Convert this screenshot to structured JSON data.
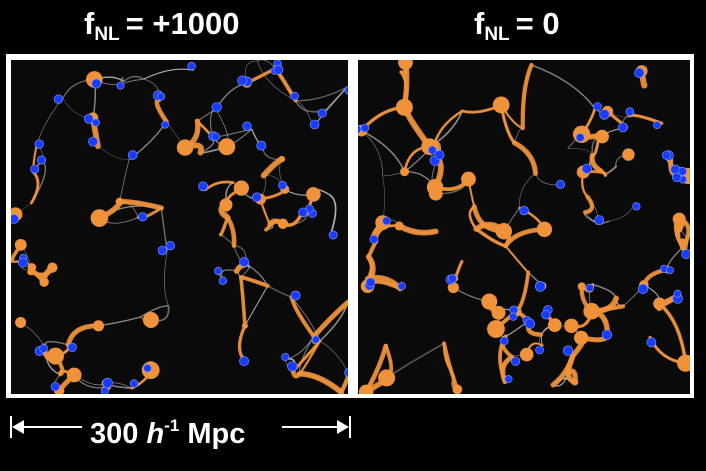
{
  "titles": {
    "left": {
      "prefix": "f",
      "subscript": "NL",
      "suffix": "= +1000"
    },
    "right": {
      "prefix": "f",
      "subscript": "NL",
      "suffix": "= 0"
    }
  },
  "scale_bar": {
    "value": "300",
    "symbol": "h",
    "exponent": "-1",
    "unit": "Mpc"
  },
  "colors": {
    "background": "#000000",
    "frame": "#ffffff",
    "filament": "#cfcfcf",
    "overdensity": "#f0923a",
    "halo": "#1a3cff"
  }
}
